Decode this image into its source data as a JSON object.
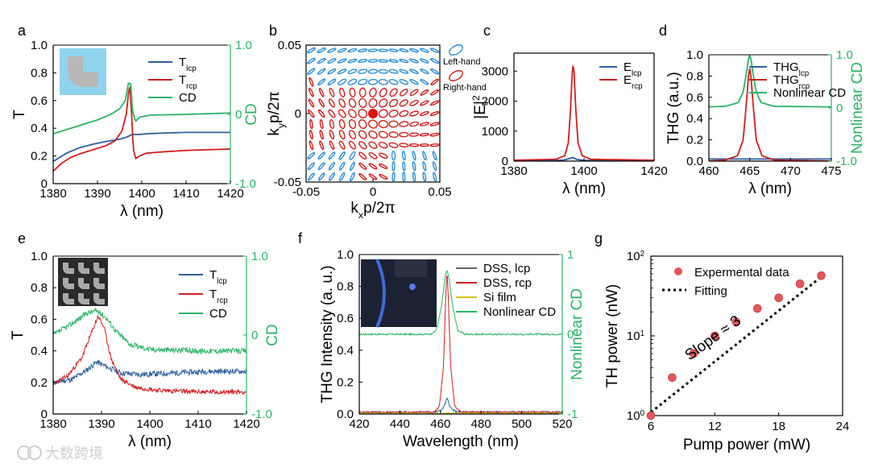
{
  "colors": {
    "lcp": "#2f5f9e",
    "rcp": "#d21e1e",
    "cd": "#2ab464",
    "si": "#d9c21a",
    "point": "#e2585a",
    "grey": "#666666",
    "inset": "#8fd3ef"
  },
  "panel_labels": [
    "a",
    "b",
    "c",
    "d",
    "e",
    "f",
    "g"
  ],
  "watermark": "大数跨境",
  "chart_data": [
    {
      "id": "a",
      "type": "line",
      "xlabel": "λ (nm)",
      "ylabel": "T",
      "y2label": "CD",
      "xlim": [
        1380,
        1420
      ],
      "ylim": [
        0,
        1.0
      ],
      "y2lim": [
        -1.0,
        1.0
      ],
      "xticks": [
        "1380",
        "1390",
        "1400",
        "1410",
        "1420"
      ],
      "yticks": [
        "0",
        "0.2",
        "0.4",
        "0.6",
        "0.8",
        "1.0"
      ],
      "y2ticks": [
        "-1.0",
        "0",
        "1.0"
      ],
      "legend": {
        "lcp": "T",
        "lcp_sub": "lcp",
        "rcp": "T",
        "rcp_sub": "rcp",
        "cd": "CD"
      },
      "series": [
        {
          "name": "Tlcp",
          "color": "lcp",
          "axis": "left",
          "x": [
            1380,
            1383,
            1386,
            1389,
            1392,
            1394,
            1395.5,
            1396.5,
            1397.2,
            1397.8,
            1398.5,
            1399.5,
            1401,
            1405,
            1410,
            1415,
            1420
          ],
          "y": [
            0.16,
            0.22,
            0.26,
            0.285,
            0.305,
            0.315,
            0.325,
            0.335,
            0.345,
            0.355,
            0.355,
            0.355,
            0.36,
            0.365,
            0.37,
            0.37,
            0.37
          ]
        },
        {
          "name": "Trcp",
          "color": "rcp",
          "axis": "left",
          "x": [
            1380,
            1382,
            1384,
            1386,
            1388,
            1390,
            1392,
            1394,
            1395.5,
            1396.5,
            1397.0,
            1397.3,
            1397.7,
            1398.1,
            1398.6,
            1399.5,
            1401,
            1405,
            1410,
            1415,
            1420
          ],
          "y": [
            0.09,
            0.15,
            0.19,
            0.215,
            0.235,
            0.255,
            0.275,
            0.31,
            0.38,
            0.5,
            0.65,
            0.71,
            0.5,
            0.25,
            0.18,
            0.2,
            0.22,
            0.23,
            0.24,
            0.245,
            0.25
          ]
        },
        {
          "name": "CD",
          "color": "cd",
          "axis": "right",
          "x": [
            1380,
            1385,
            1390,
            1393,
            1395,
            1396.3,
            1397.0,
            1397.5,
            1397.9,
            1398.6,
            1399.5,
            1402,
            1410,
            1420
          ],
          "y": [
            -0.28,
            -0.18,
            -0.08,
            0.0,
            0.08,
            0.2,
            0.45,
            0.44,
            0.05,
            -0.1,
            -0.04,
            -0.01,
            0.0,
            0.02
          ]
        }
      ]
    },
    {
      "id": "b",
      "type": "scatter",
      "xlabel": "kxp/2π",
      "xlabel_main": "k",
      "xlabel_sub": "x",
      "xlabel_rest": "p/2π",
      "ylabel_main": "k",
      "ylabel_sub": "y",
      "ylabel_rest": "p/2π",
      "xlim": [
        -0.05,
        0.05
      ],
      "ylim": [
        -0.05,
        0.05
      ],
      "xticks": [
        "-0.05",
        "0",
        "0.05"
      ],
      "yticks": [
        "-0.05",
        "0",
        "0.05"
      ],
      "legend": {
        "left": "Left-hand",
        "right": "Right-hand"
      },
      "grid_n": 13,
      "center_point": [
        0,
        0
      ]
    },
    {
      "id": "c",
      "type": "line",
      "xlabel": "λ (nm)",
      "ylabel": "|E|",
      "ylabel_sup": "2",
      "xlim": [
        1380,
        1420
      ],
      "ylim": [
        0,
        3600
      ],
      "xticks": [
        "1380",
        "1400",
        "1420"
      ],
      "yticks": [
        "0",
        "1000",
        "2000",
        "3000"
      ],
      "legend": {
        "lcp": "E",
        "lcp_sub": "lcp",
        "rcp": "E",
        "rcp_sub": "rcp"
      },
      "series": [
        {
          "name": "Elcp",
          "color": "lcp",
          "axis": "left",
          "x": [
            1380,
            1394,
            1396,
            1396.9,
            1397.8,
            1400,
            1420
          ],
          "y": [
            15,
            30,
            90,
            120,
            60,
            25,
            15
          ]
        },
        {
          "name": "Ercp",
          "color": "rcp",
          "axis": "left",
          "x": [
            1380,
            1392,
            1394.5,
            1395.5,
            1396.2,
            1396.6,
            1396.9,
            1397.2,
            1397.6,
            1398.3,
            1399.5,
            1402,
            1420
          ],
          "y": [
            30,
            60,
            180,
            600,
            1800,
            2900,
            3220,
            2900,
            1800,
            600,
            180,
            60,
            30
          ]
        }
      ]
    },
    {
      "id": "d",
      "type": "line",
      "xlabel": "λ (nm)",
      "ylabel": "THG (a.u.)",
      "y2label": "Nonlinear CD",
      "xlim": [
        460,
        475
      ],
      "ylim": [
        0,
        1.0
      ],
      "y2lim": [
        -1.0,
        1.0
      ],
      "xticks": [
        "460",
        "465",
        "470",
        "475"
      ],
      "yticks": [
        "0.0",
        "0.2",
        "0.4",
        "0.6",
        "0.8",
        "1.0"
      ],
      "y2ticks": [
        "-1.0",
        "0",
        "1.0"
      ],
      "legend": {
        "lcp": "THG",
        "lcp_sub": "lcp",
        "rcp": "THG",
        "rcp_sub": "rcp",
        "cd": "Nonlinear CD"
      },
      "series": [
        {
          "name": "THGlcp",
          "color": "lcp",
          "axis": "left",
          "x": [
            460,
            475
          ],
          "y": [
            0.02,
            0.02
          ]
        },
        {
          "name": "THGrcp",
          "color": "rcp",
          "axis": "left",
          "x": [
            460,
            462,
            463.5,
            464.2,
            464.6,
            464.85,
            465.0,
            465.15,
            465.4,
            465.8,
            466.5,
            468,
            475
          ],
          "y": [
            0.0,
            0.01,
            0.05,
            0.2,
            0.55,
            0.8,
            0.87,
            0.8,
            0.55,
            0.2,
            0.05,
            0.01,
            0.0
          ]
        },
        {
          "name": "NonlinearCD",
          "color": "cd",
          "axis": "right",
          "x": [
            460,
            462,
            463.6,
            464.2,
            464.6,
            464.85,
            465.0,
            465.15,
            465.4,
            465.8,
            466.4,
            468,
            475
          ],
          "y": [
            0.02,
            0.03,
            0.1,
            0.3,
            0.65,
            0.92,
            0.99,
            0.92,
            0.65,
            0.3,
            0.1,
            0.03,
            0.02
          ]
        }
      ]
    },
    {
      "id": "e",
      "type": "line",
      "xlabel": "λ (nm)",
      "ylabel": "T",
      "y2label": "CD",
      "xlim": [
        1380,
        1420
      ],
      "ylim": [
        0,
        1.0
      ],
      "y2lim": [
        -1.0,
        1.0
      ],
      "xticks": [
        "1380",
        "1390",
        "1400",
        "1410",
        "1420"
      ],
      "yticks": [
        "0",
        "0.2",
        "0.4",
        "0.6",
        "0.8",
        "1.0"
      ],
      "y2ticks": [
        "-1.0",
        "0",
        "1.0"
      ],
      "legend": {
        "lcp": "T",
        "lcp_sub": "lcp",
        "rcp": "T",
        "rcp_sub": "rcp",
        "cd": "CD"
      },
      "series": [
        {
          "name": "Tlcp",
          "color": "lcp",
          "axis": "left",
          "noise": 0.018,
          "seed": 11,
          "x": [
            1380,
            1384,
            1387,
            1389,
            1391,
            1394,
            1398,
            1405,
            1412,
            1420
          ],
          "y": [
            0.2,
            0.22,
            0.28,
            0.33,
            0.3,
            0.26,
            0.25,
            0.26,
            0.27,
            0.27
          ]
        },
        {
          "name": "Trcp",
          "color": "rcp",
          "axis": "left",
          "noise": 0.015,
          "seed": 23,
          "x": [
            1380,
            1383,
            1386,
            1388,
            1389.3,
            1390.5,
            1392,
            1394,
            1397,
            1402,
            1410,
            1420
          ],
          "y": [
            0.19,
            0.24,
            0.36,
            0.52,
            0.62,
            0.55,
            0.35,
            0.22,
            0.17,
            0.15,
            0.14,
            0.14
          ]
        },
        {
          "name": "CD",
          "color": "cd",
          "axis": "right",
          "noise": 0.035,
          "seed": 37,
          "x": [
            1380,
            1384,
            1387,
            1389,
            1391,
            1393,
            1396,
            1400,
            1410,
            1420
          ],
          "y": [
            0.0,
            0.15,
            0.28,
            0.31,
            0.22,
            0.05,
            -0.12,
            -0.18,
            -0.2,
            -0.2
          ]
        }
      ]
    },
    {
      "id": "f",
      "type": "line",
      "xlabel": "Wavelength (nm)",
      "ylabel": "THG Intensity (a. u.)",
      "y2label": "Nonlinear CD",
      "xlim": [
        420,
        520
      ],
      "ylim": [
        0,
        1.0
      ],
      "y2lim": [
        -1,
        1
      ],
      "xticks": [
        "420",
        "440",
        "460",
        "480",
        "500",
        "520"
      ],
      "yticks": [
        "0.0",
        "0.2",
        "0.4",
        "0.6",
        "0.8",
        "1.0"
      ],
      "y2ticks": [
        "-1",
        "0",
        "1"
      ],
      "legend": {
        "lcp": "DSS, lcp",
        "rcp": "DSS, rcp",
        "si": "Si film",
        "cd": "Nonlinear CD"
      },
      "series": [
        {
          "name": "DSSlcp",
          "color": "lcp",
          "axis": "left",
          "noise": 0.006,
          "seed": 5,
          "x": [
            420,
            458,
            461,
            462.5,
            463.2,
            464.0,
            465.5,
            468,
            520
          ],
          "y": [
            0.01,
            0.012,
            0.03,
            0.07,
            0.1,
            0.07,
            0.03,
            0.012,
            0.01
          ]
        },
        {
          "name": "DSSrcp",
          "color": "rcp",
          "axis": "left",
          "noise": 0.005,
          "seed": 9,
          "x": [
            420,
            457,
            459.5,
            461.5,
            462.6,
            463.2,
            463.8,
            465.0,
            467,
            470,
            520
          ],
          "y": [
            0.01,
            0.012,
            0.05,
            0.3,
            0.75,
            0.9,
            0.75,
            0.3,
            0.05,
            0.012,
            0.01
          ]
        },
        {
          "name": "Sifilm",
          "color": "si",
          "axis": "left",
          "noise": 0.004,
          "seed": 13,
          "x": [
            420,
            520
          ],
          "y": [
            0.005,
            0.005
          ]
        },
        {
          "name": "NonlinearCD",
          "color": "cd",
          "axis": "right",
          "noise": 0.01,
          "seed": 17,
          "x": [
            420,
            455,
            458,
            460.5,
            462.3,
            463.2,
            464.1,
            466,
            468.5,
            472,
            520
          ],
          "y": [
            0.0,
            0.0,
            0.05,
            0.35,
            0.72,
            0.8,
            0.72,
            0.35,
            0.05,
            0.0,
            0.0
          ]
        }
      ]
    },
    {
      "id": "g",
      "type": "scatter",
      "xlabel": "Pump power (mW)",
      "ylabel": "TH power (nW)",
      "xlim": [
        6,
        24
      ],
      "ylim": [
        1,
        100
      ],
      "yscale": "log",
      "xticks": [
        "6",
        "12",
        "18",
        "24"
      ],
      "yticks": [
        "10",
        "10",
        "10"
      ],
      "ytick_exp": [
        "0",
        "1",
        "2"
      ],
      "legend": {
        "points": "Expermental data",
        "fit": "Fitting"
      },
      "annotation": "Slope ≈ 3",
      "points": {
        "x": [
          6,
          8,
          10,
          12,
          14,
          16,
          18,
          20,
          22
        ],
        "y": [
          1.0,
          3.0,
          6.0,
          10.0,
          15.0,
          22.0,
          30.0,
          45.0,
          57.0
        ]
      },
      "fit": {
        "x": [
          6,
          22
        ],
        "y": [
          1.1,
          55
        ]
      }
    }
  ]
}
